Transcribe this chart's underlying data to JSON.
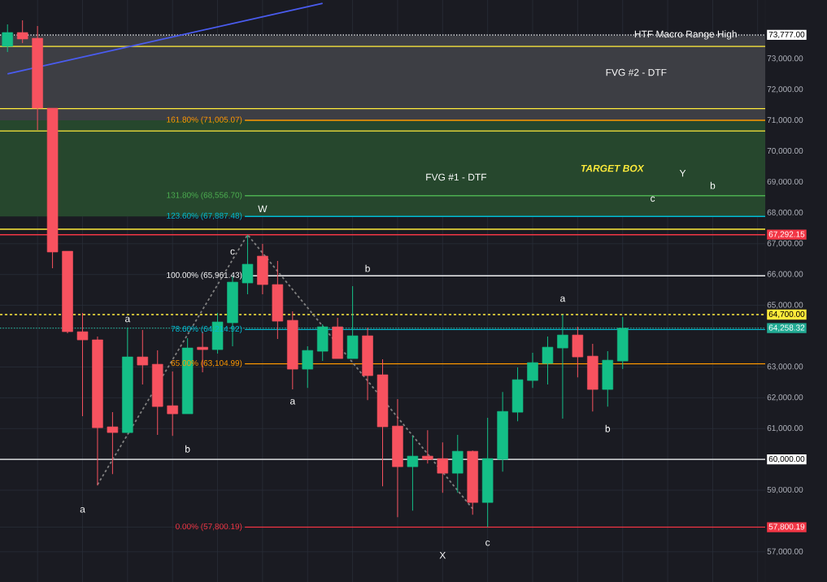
{
  "chart_data": {
    "type": "candlestick",
    "categories": [
      null,
      null,
      null,
      null,
      null,
      null,
      null,
      null,
      null,
      null,
      null,
      null,
      null,
      null,
      null,
      null,
      null,
      null,
      null,
      null,
      null,
      null,
      null,
      null,
      null,
      null,
      null,
      null,
      null,
      null,
      null,
      null,
      null,
      null,
      null,
      null,
      null,
      null,
      null,
      null,
      null,
      null,
      null,
      null,
      null,
      null,
      null,
      null,
      null,
      null,
      null
    ],
    "ohlc": [
      [
        73406,
        74119,
        73221,
        73855
      ],
      [
        73855,
        74251,
        73512,
        73644
      ],
      [
        73670,
        74066,
        70688,
        71400
      ],
      [
        71400,
        71400,
        66202,
        66730
      ],
      [
        66756,
        66756,
        64090,
        64143
      ],
      [
        64143,
        64750,
        61399,
        63879
      ],
      [
        63879,
        63985,
        59156,
        61029
      ],
      [
        61056,
        61531,
        59525,
        60871
      ],
      [
        60871,
        64275,
        60871,
        63325
      ],
      [
        63325,
        64196,
        62428,
        63061
      ],
      [
        63088,
        63536,
        60792,
        61715
      ],
      [
        61742,
        62850,
        60765,
        61478
      ],
      [
        61478,
        63932,
        61478,
        63615
      ],
      [
        63642,
        64143,
        62824,
        63563
      ],
      [
        63563,
        64750,
        63431,
        64460
      ],
      [
        64434,
        65938,
        63668,
        65753
      ],
      [
        65727,
        67292,
        65357,
        66334
      ],
      [
        66598,
        66994,
        65357,
        65674
      ],
      [
        65674,
        66440,
        63906,
        64486
      ],
      [
        64513,
        64803,
        62270,
        62929
      ],
      [
        62929,
        63668,
        62322,
        63536
      ],
      [
        63510,
        64381,
        63193,
        64302
      ],
      [
        64302,
        64592,
        63272,
        63272
      ],
      [
        63272,
        65621,
        63272,
        64011
      ],
      [
        64011,
        64275,
        61926,
        62718
      ],
      [
        62745,
        63246,
        59129,
        61056
      ],
      [
        61082,
        61953,
        58126,
        59762
      ],
      [
        59762,
        60765,
        58337,
        60106
      ],
      [
        60106,
        60950,
        59868,
        60000
      ],
      [
        60026,
        60554,
        58918,
        59551
      ],
      [
        59551,
        60792,
        58918,
        60264
      ],
      [
        60264,
        60290,
        58205,
        58601
      ],
      [
        58601,
        61346,
        57800,
        60026
      ],
      [
        60000,
        62190,
        59604,
        61557
      ],
      [
        61531,
        62982,
        61240,
        62586
      ],
      [
        62560,
        63457,
        62322,
        63140
      ],
      [
        63114,
        63985,
        62428,
        63642
      ],
      [
        63615,
        64700,
        61320,
        64037
      ],
      [
        64037,
        64302,
        62665,
        63325
      ],
      [
        63351,
        63747,
        61557,
        62270
      ],
      [
        62270,
        63510,
        61715,
        63220
      ],
      [
        63193,
        64618,
        62929,
        64258
      ],
      null,
      null,
      null,
      null,
      null,
      null,
      null,
      null,
      null
    ],
    "colors": [
      "#14bf87",
      "#f7525f",
      "#f7525f",
      "#f7525f",
      "#f7525f",
      "#f7525f",
      "#f7525f",
      "#f7525f",
      "#14bf87",
      "#f7525f",
      "#f7525f",
      "#f7525f",
      "#14bf87",
      "#f7525f",
      "#14bf87",
      "#14bf87",
      "#14bf87",
      "#f7525f",
      "#f7525f",
      "#f7525f",
      "#14bf87",
      "#14bf87",
      "#f7525f",
      "#14bf87",
      "#f7525f",
      "#f7525f",
      "#f7525f",
      "#14bf87",
      "#f7525f",
      "#f7525f",
      "#14bf87",
      "#f7525f",
      "#14bf87",
      "#14bf87",
      "#14bf87",
      "#14bf87",
      "#14bf87",
      "#14bf87",
      "#f7525f",
      "#f7525f",
      "#14bf87",
      "#14bf87",
      null,
      null,
      null,
      null,
      null,
      null,
      null,
      null,
      null
    ],
    "series": [
      {
        "type": "line",
        "color": "#4a5cf0",
        "values": [
          72510,
          null,
          null,
          null,
          null,
          null,
          null,
          null,
          null,
          null,
          null,
          null,
          null,
          null,
          null,
          null,
          null,
          null,
          null,
          null,
          null,
          74800,
          null,
          null,
          null,
          null,
          null,
          null,
          null,
          null,
          null,
          null,
          null,
          null,
          null,
          null,
          null,
          null,
          null,
          null,
          null,
          null,
          null,
          null,
          null,
          null,
          null,
          null,
          null,
          null,
          null
        ]
      },
      {
        "type": "line",
        "color": "#808080",
        "line_style": "dashed",
        "values": [
          null,
          null,
          null,
          null,
          null,
          null,
          59180,
          null,
          null,
          null,
          null,
          null,
          null,
          null,
          null,
          null,
          67292,
          null,
          null,
          null,
          null,
          null,
          null,
          null,
          null,
          null,
          null,
          null,
          null,
          null,
          null,
          58400,
          null,
          null,
          null,
          null,
          null,
          null,
          null,
          null,
          null,
          null,
          null,
          null,
          null,
          null,
          null,
          null,
          null,
          null,
          null
        ]
      }
    ],
    "ylim": [
      56020,
      74910
    ],
    "yticks": [
      {
        "value": 57000,
        "label": "57,000.00"
      },
      {
        "value": 57800.19,
        "label": "57,800.19"
      },
      {
        "value": 59000,
        "label": "59,000.00"
      },
      {
        "value": 60000,
        "label": "60,000.00"
      },
      {
        "value": 61000,
        "label": "61,000.00"
      },
      {
        "value": 62000,
        "label": "62,000.00"
      },
      {
        "value": 63000,
        "label": "63,000.00"
      },
      {
        "value": 64258.32,
        "label": "64,258.32"
      },
      {
        "value": 64700,
        "label": "64,700.00"
      },
      {
        "value": 65000,
        "label": "65,000.00"
      },
      {
        "value": 66000,
        "label": "66,000.00"
      },
      {
        "value": 67000,
        "label": "67,000.00"
      },
      {
        "value": 67292.15,
        "label": "67,292.15"
      },
      {
        "value": 68000,
        "label": "68,000.00"
      },
      {
        "value": 69000,
        "label": "69,000.00"
      },
      {
        "value": 70000,
        "label": "70,000.00"
      },
      {
        "value": 71000,
        "label": "71,000.00"
      },
      {
        "value": 72000,
        "label": "72,000.00"
      },
      {
        "value": 73000,
        "label": "73,000.00"
      },
      {
        "value": 73777,
        "label": "73,777.00"
      }
    ],
    "tick_labels": "y",
    "grid": true,
    "bands": [
      {
        "axis": "y",
        "from": 70690,
        "to": 73750,
        "color": "#3d3e44"
      },
      {
        "axis": "y",
        "from": 67887.48,
        "to": 71005.07,
        "color": "#26472d",
        "label": "TARGET BOX"
      }
    ],
    "ref_lines": [
      {
        "axis": "y",
        "value": 73406,
        "color": "#ffeb3b"
      },
      {
        "axis": "y",
        "value": 71380,
        "color": "#ffeb3b"
      },
      {
        "axis": "y",
        "value": 70660,
        "color": "#ffeb3b"
      },
      {
        "axis": "y",
        "value": 67470,
        "color": "#ffeb3b"
      },
      {
        "axis": "y",
        "value": 73777,
        "color": "#ffffff",
        "line_style": "dotted"
      },
      {
        "axis": "y",
        "value": 67292.15,
        "color": "#f23645"
      },
      {
        "axis": "y",
        "value": 64700,
        "color": "#ffeb3b",
        "line_style": "dashed"
      },
      {
        "axis": "y",
        "value": 64258.32,
        "color": "#22ab94",
        "line_style": "dotted"
      },
      {
        "axis": "y",
        "value": 60000,
        "color": "#ffffff"
      },
      {
        "axis": "y",
        "value": 71005.07,
        "color": "#ff9800",
        "label": "161.80% (71,005.07)"
      },
      {
        "axis": "y",
        "value": 68556.7,
        "color": "#4caf50",
        "label": "131.80% (68,556.70)"
      },
      {
        "axis": "y",
        "value": 67887.48,
        "color": "#00bcd4",
        "label": "123.60% (67,887.48)"
      },
      {
        "axis": "y",
        "value": 65961.43,
        "color": "#ffffff",
        "label": "100.00% (65,961.43)"
      },
      {
        "axis": "y",
        "value": 64214.92,
        "color": "#00bcd4",
        "label": "78.60% (64,214.92)"
      },
      {
        "axis": "y",
        "value": 63104.99,
        "color": "#ff9800",
        "label": "65.00% (63,104.99)"
      },
      {
        "axis": "y",
        "value": 57800.19,
        "color": "#f23645",
        "label": "0.00% (57,800.19)"
      }
    ],
    "annotations": [
      "a",
      "b",
      "c",
      "a",
      "W",
      "b",
      "a",
      "c",
      "X",
      "a",
      "b",
      "c",
      "Y",
      "b",
      "FVG #1 - DTF",
      "FVG #2 - DTF",
      "HTF Macro Range High"
    ]
  }
}
